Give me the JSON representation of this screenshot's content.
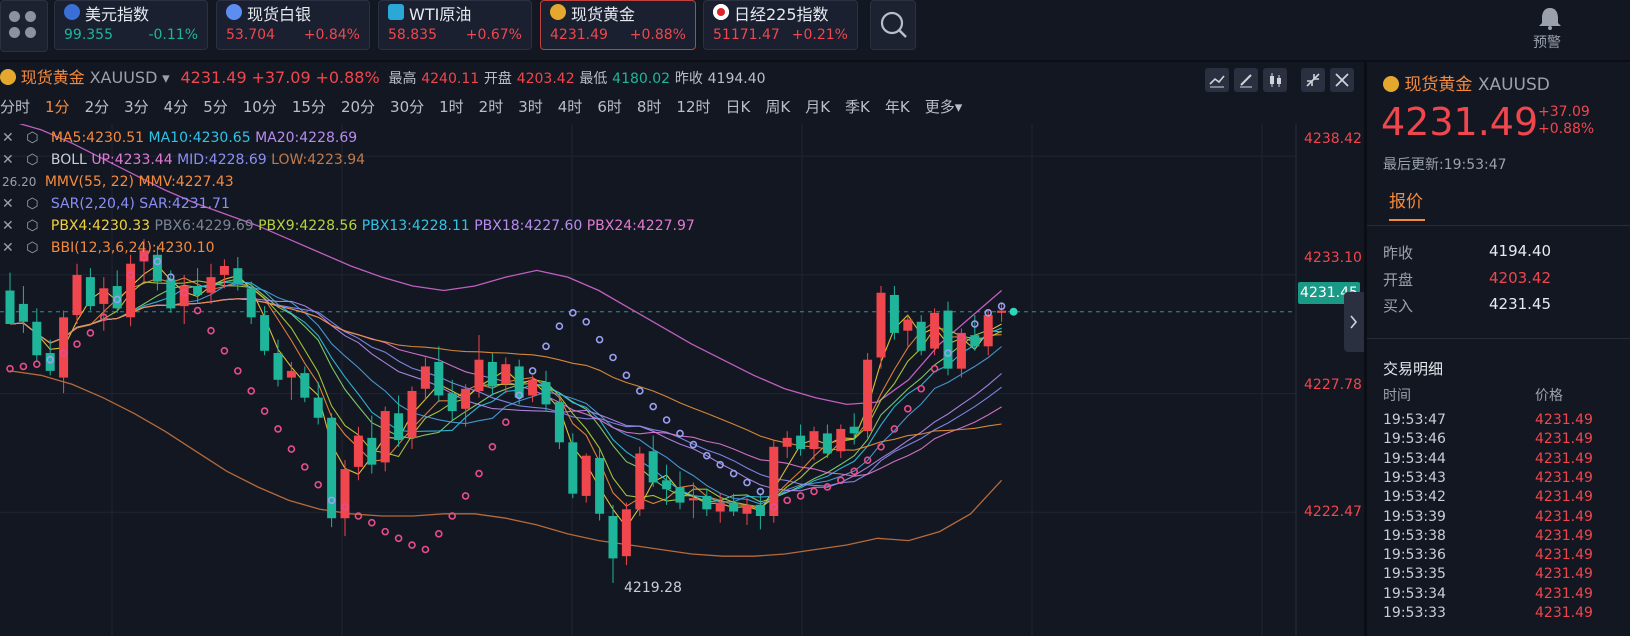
{
  "tickers": [
    {
      "name": "美元指数",
      "price": "99.355",
      "change": "-0.11%",
      "dir": "down",
      "icon_color": "#3b6fd8"
    },
    {
      "name": "现货白银",
      "price": "53.704",
      "change": "+0.84%",
      "dir": "up",
      "icon_color": "#5b8ef0"
    },
    {
      "name": "WTI原油",
      "price": "58.835",
      "change": "+0.67%",
      "dir": "up",
      "icon_color": "#2aa8d8"
    },
    {
      "name": "现货黄金",
      "price": "4231.49",
      "change": "+0.88%",
      "dir": "up",
      "icon_color": "#e5a82e"
    },
    {
      "name": "日经225指数",
      "price": "51171.47",
      "change": "+0.21%",
      "dir": "up",
      "icon_color": "#ffffff"
    }
  ],
  "alert_label": "预警",
  "header": {
    "name": "现货黄金",
    "symbol": "XAUUSD",
    "price": "4231.49",
    "change": "+37.09",
    "change_pct": "+0.88%",
    "high_label": "最高",
    "high": "4240.11",
    "open_label": "开盘",
    "open": "4203.42",
    "low_label": "最低",
    "low": "4180.02",
    "prev_label": "昨收",
    "prev": "4194.40"
  },
  "intervals": [
    "分时",
    "1分",
    "2分",
    "3分",
    "4分",
    "5分",
    "10分",
    "15分",
    "20分",
    "30分",
    "1时",
    "2时",
    "3时",
    "4时",
    "6时",
    "8时",
    "12时",
    "日K",
    "周K",
    "月K",
    "季K",
    "年K",
    "更多"
  ],
  "selected_interval": "1分",
  "indicators": {
    "ma": {
      "ma5": "MA5:4230.51",
      "ma10": "MA10:4230.65",
      "ma20": "MA20:4228.69"
    },
    "boll": {
      "name": "BOLL",
      "up": "UP:4233.44",
      "mid": "MID:4228.69",
      "low": "LOW:4223.94"
    },
    "mmv": {
      "name": "MMV(55, 22)",
      "val": "MMV:4227.43"
    },
    "sar": {
      "name": "SAR(2,20,4)",
      "val": "SAR:4231.71"
    },
    "pbx": {
      "pbx4": "PBX4:4230.33",
      "pbx6": "PBX6:4229.69",
      "pbx9": "PBX9:4228.56",
      "pbx13": "PBX13:4228.11",
      "pbx18": "PBX18:4227.60",
      "pbx24": "PBX24:4227.97"
    },
    "bbi": {
      "val": "BBI(12,3,6,24):4230.10"
    },
    "left_cut": "26.20"
  },
  "y_axis": [
    "4238.42",
    "4233.10",
    "4227.78",
    "4222.47"
  ],
  "last_price_tag": "4231.45",
  "min_label": "4219.28",
  "chart_data": {
    "type": "candlestick",
    "y_range": [
      4218.0,
      4239.5
    ],
    "candles": [
      [
        4232.4,
        4233.2,
        4231.0,
        4230.9
      ],
      [
        4231.8,
        4232.6,
        4230.5,
        4231.0
      ],
      [
        4231.0,
        4231.6,
        4229.2,
        4229.5
      ],
      [
        4229.6,
        4230.2,
        4228.6,
        4228.8
      ],
      [
        4228.5,
        4231.5,
        4227.8,
        4231.2
      ],
      [
        4231.3,
        4233.6,
        4230.9,
        4233.1
      ],
      [
        4233.0,
        4233.4,
        4231.5,
        4231.7
      ],
      [
        4231.8,
        4233.0,
        4230.6,
        4232.5
      ],
      [
        4232.6,
        4233.3,
        4231.4,
        4231.6
      ],
      [
        4231.2,
        4234.0,
        4230.8,
        4233.6
      ],
      [
        4233.7,
        4234.7,
        4232.8,
        4234.2
      ],
      [
        4234.0,
        4234.4,
        4232.4,
        4232.8
      ],
      [
        4232.9,
        4233.3,
        4231.4,
        4231.6
      ],
      [
        4231.7,
        4233.1,
        4230.9,
        4232.6
      ],
      [
        4232.6,
        4233.4,
        4231.8,
        4232.2
      ],
      [
        4232.3,
        4233.6,
        4231.8,
        4233.0
      ],
      [
        4233.1,
        4233.8,
        4232.5,
        4233.5
      ],
      [
        4233.4,
        4233.9,
        4232.4,
        4232.7
      ],
      [
        4232.5,
        4232.8,
        4230.9,
        4231.2
      ],
      [
        4231.3,
        4231.7,
        4229.5,
        4229.7
      ],
      [
        4229.6,
        4230.2,
        4228.1,
        4228.4
      ],
      [
        4228.5,
        4229.2,
        4227.5,
        4228.8
      ],
      [
        4228.7,
        4229.0,
        4227.4,
        4227.6
      ],
      [
        4227.6,
        4228.3,
        4226.4,
        4226.7
      ],
      [
        4226.7,
        4226.9,
        4221.8,
        4222.2
      ],
      [
        4222.2,
        4224.8,
        4221.4,
        4224.4
      ],
      [
        4224.5,
        4226.3,
        4223.9,
        4225.9
      ],
      [
        4225.8,
        4226.8,
        4224.2,
        4224.6
      ],
      [
        4224.7,
        4227.2,
        4224.3,
        4227.0
      ],
      [
        4226.9,
        4227.7,
        4225.4,
        4225.7
      ],
      [
        4225.8,
        4228.1,
        4225.3,
        4227.9
      ],
      [
        4228.0,
        4229.4,
        4227.5,
        4229.0
      ],
      [
        4229.2,
        4229.9,
        4227.4,
        4227.7
      ],
      [
        4227.8,
        4228.4,
        4226.6,
        4227.0
      ],
      [
        4227.1,
        4228.2,
        4226.3,
        4228.0
      ],
      [
        4227.9,
        4230.4,
        4227.6,
        4229.3
      ],
      [
        4229.2,
        4229.6,
        4227.7,
        4228.1
      ],
      [
        4228.2,
        4229.4,
        4227.8,
        4229.1
      ],
      [
        4229.0,
        4229.3,
        4227.3,
        4227.6
      ],
      [
        4227.7,
        4228.6,
        4227.4,
        4228.4
      ],
      [
        4228.3,
        4228.8,
        4227.0,
        4227.3
      ],
      [
        4227.4,
        4227.8,
        4225.3,
        4225.6
      ],
      [
        4225.6,
        4226.0,
        4223.1,
        4223.3
      ],
      [
        4223.2,
        4225.1,
        4222.9,
        4225.0
      ],
      [
        4224.9,
        4225.3,
        4222.1,
        4222.4
      ],
      [
        4222.3,
        4222.8,
        4219.3,
        4220.4
      ],
      [
        4220.5,
        4222.9,
        4220.1,
        4222.6
      ],
      [
        4222.6,
        4225.4,
        4222.3,
        4225.1
      ],
      [
        4225.2,
        4225.9,
        4223.6,
        4223.8
      ],
      [
        4223.9,
        4224.6,
        4222.8,
        4223.5
      ],
      [
        4223.6,
        4224.3,
        4222.6,
        4222.9
      ],
      [
        4223.0,
        4223.8,
        4222.2,
        4223.1
      ],
      [
        4223.2,
        4223.5,
        4222.3,
        4222.6
      ],
      [
        4222.5,
        4223.3,
        4222.0,
        4222.9
      ],
      [
        4222.9,
        4223.3,
        4222.3,
        4222.5
      ],
      [
        4222.4,
        4223.1,
        4221.9,
        4222.8
      ],
      [
        4222.8,
        4223.3,
        4221.7,
        4222.3
      ],
      [
        4222.3,
        4225.7,
        4222.0,
        4225.4
      ],
      [
        4225.4,
        4226.1,
        4224.9,
        4225.8
      ],
      [
        4225.9,
        4226.4,
        4225.0,
        4225.3
      ],
      [
        4225.3,
        4226.3,
        4224.8,
        4226.1
      ],
      [
        4226.0,
        4226.4,
        4224.9,
        4225.1
      ],
      [
        4225.2,
        4226.4,
        4224.9,
        4226.2
      ],
      [
        4226.3,
        4226.9,
        4225.5,
        4226.0
      ],
      [
        4226.1,
        4229.6,
        4225.8,
        4229.3
      ],
      [
        4229.4,
        4232.6,
        4228.9,
        4232.3
      ],
      [
        4232.2,
        4232.6,
        4230.2,
        4230.5
      ],
      [
        4230.6,
        4231.3,
        4229.9,
        4231.1
      ],
      [
        4231.0,
        4231.3,
        4229.5,
        4229.7
      ],
      [
        4229.8,
        4231.6,
        4229.5,
        4231.4
      ],
      [
        4231.5,
        4231.9,
        4228.6,
        4228.9
      ],
      [
        4228.9,
        4230.7,
        4228.5,
        4230.5
      ],
      [
        4230.4,
        4231.3,
        4229.7,
        4229.9
      ],
      [
        4229.9,
        4231.5,
        4229.5,
        4231.3
      ],
      [
        4231.4,
        4231.8,
        4231.0,
        4231.5
      ]
    ],
    "boll_upper": [
      4240.0,
      4239.6,
      4239.0,
      4238.3,
      4237.6,
      4236.9,
      4236.3,
      4235.8,
      4235.3,
      4234.7,
      4234.1,
      4233.5,
      4233.0,
      4232.6,
      4232.4,
      4232.6,
      4233.0,
      4233.3,
      4233.0,
      4232.4,
      4231.6,
      4230.8,
      4230.0,
      4229.3,
      4228.6,
      4228.0,
      4227.6,
      4227.3,
      4227.4,
      4228.4,
      4230.0,
      4231.2,
      4232.4
    ],
    "boll_lower": [
      4228.8,
      4228.6,
      4228.2,
      4227.6,
      4226.9,
      4226.1,
      4225.2,
      4224.3,
      4223.6,
      4223.0,
      4222.6,
      4222.4,
      4222.3,
      4222.3,
      4222.4,
      4222.4,
      4222.2,
      4221.9,
      4221.5,
      4221.2,
      4221.0,
      4220.8,
      4220.6,
      4220.5,
      4220.5,
      4220.6,
      4220.8,
      4221.0,
      4221.3,
      4221.2,
      4221.6,
      4222.4,
      4223.9
    ],
    "sar_dots": [
      4228.9,
      4229.0,
      4229.1,
      4229.3,
      4229.6,
      4230.0,
      4230.5,
      4231.2,
      4232.0,
      4233.1,
      4233.9,
      4233.7,
      4233.0,
      4232.3,
      4231.5,
      4230.6,
      4229.7,
      4228.8,
      4227.9,
      4227.0,
      4226.2,
      4225.3,
      4224.5,
      4223.7,
      4223.0,
      4222.7,
      4222.3,
      4222.0,
      4221.6,
      4221.3,
      4221.0,
      4220.8,
      4221.5,
      4222.3,
      4223.2,
      4224.2,
      4225.4,
      4226.5,
      4227.7,
      4228.8,
      4229.9,
      4230.8,
      4231.4,
      4231.0,
      4230.2,
      4229.4,
      4228.6,
      4227.9,
      4227.2,
      4226.6,
      4226.0,
      4225.5,
      4225.0,
      4224.6,
      4224.2,
      4223.8,
      4223.4,
      4222.7,
      4223.0,
      4223.2,
      4223.4,
      4223.6,
      4223.9,
      4224.3,
      4224.8,
      4225.4,
      4226.2,
      4227.1,
      4228.0,
      4228.9,
      4229.6,
      4230.3,
      4230.9,
      4231.4,
      4231.7
    ]
  },
  "right_panel": {
    "name": "现货黄金",
    "symbol": "XAUUSD",
    "price": "4231.49",
    "change": "+37.09",
    "change_pct": "+0.88%",
    "updated": "最后更新:19:53:47",
    "tab": "报价",
    "quotes": [
      {
        "label": "昨收",
        "value": "4194.40",
        "dir": "flat"
      },
      {
        "label": "开盘",
        "value": "4203.42",
        "dir": "up"
      },
      {
        "label": "买入",
        "value": "4231.45",
        "dir": "flat"
      }
    ],
    "trades_title": "交易明细",
    "col_time": "时间",
    "col_price": "价格",
    "trades": [
      {
        "time": "19:53:47",
        "price": "4231.49"
      },
      {
        "time": "19:53:46",
        "price": "4231.49"
      },
      {
        "time": "19:53:44",
        "price": "4231.49"
      },
      {
        "time": "19:53:43",
        "price": "4231.49"
      },
      {
        "time": "19:53:42",
        "price": "4231.49"
      },
      {
        "time": "19:53:39",
        "price": "4231.49"
      },
      {
        "time": "19:53:38",
        "price": "4231.49"
      },
      {
        "time": "19:53:36",
        "price": "4231.49"
      },
      {
        "time": "19:53:35",
        "price": "4231.49"
      },
      {
        "time": "19:53:34",
        "price": "4231.49"
      },
      {
        "time": "19:53:33",
        "price": "4231.49"
      }
    ]
  }
}
